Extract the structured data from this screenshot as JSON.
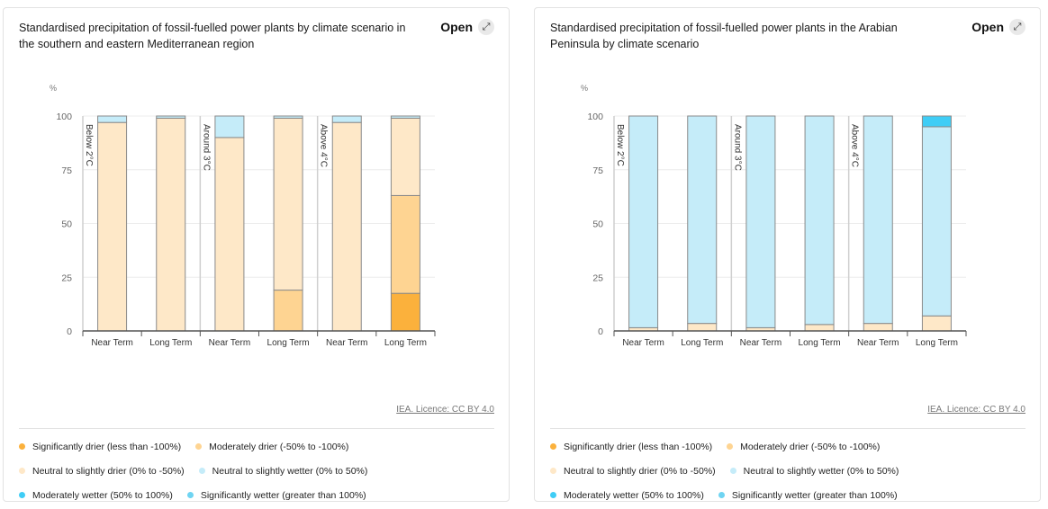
{
  "open_label": "Open",
  "licence": "IEA. Licence: CC BY 4.0",
  "legend": [
    {
      "label": "Significantly drier (less than -100%)",
      "color": "#fbb13c"
    },
    {
      "label": "Moderately drier (-50% to -100%)",
      "color": "#fed492"
    },
    {
      "label": "Neutral to slightly drier (0% to -50%)",
      "color": "#fee8c8"
    },
    {
      "label": "Neutral to slightly wetter (0% to 50%)",
      "color": "#c5ecf9"
    },
    {
      "label": "Moderately wetter (50% to 100%)",
      "color": "#3fcdf6"
    },
    {
      "label": "Significantly wetter (greater than 100%)",
      "color": "#6fd4f2"
    }
  ],
  "chart_data": [
    {
      "type": "bar",
      "stacked": true,
      "title": "Standardised precipitation of fossil-fuelled power plants by climate scenario in the southern and eastern Mediterranean region",
      "ylabel": "%",
      "ylim": [
        0,
        100
      ],
      "yticks": [
        0,
        25,
        50,
        75,
        100
      ],
      "grid": true,
      "groups": [
        "Below 2°C",
        "Around 3°C",
        "Above 4°C"
      ],
      "categories": [
        "Near Term",
        "Long Term",
        "Near Term",
        "Long Term",
        "Near Term",
        "Long Term"
      ],
      "series": [
        {
          "name": "Significantly drier (less than -100%)",
          "values": [
            0,
            0,
            0,
            0,
            0,
            17.5
          ]
        },
        {
          "name": "Moderately drier (-50% to -100%)",
          "values": [
            0,
            0,
            0,
            19,
            0,
            45.5
          ]
        },
        {
          "name": "Neutral to slightly drier (0% to -50%)",
          "values": [
            97,
            99,
            90,
            80,
            97,
            36
          ]
        },
        {
          "name": "Neutral to slightly wetter (0% to 50%)",
          "values": [
            3,
            1,
            10,
            1,
            3,
            1
          ]
        },
        {
          "name": "Moderately wetter (50% to 100%)",
          "values": [
            0,
            0,
            0,
            0,
            0,
            0
          ]
        },
        {
          "name": "Significantly wetter (greater than 100%)",
          "values": [
            0,
            0,
            0,
            0,
            0,
            0
          ]
        }
      ]
    },
    {
      "type": "bar",
      "stacked": true,
      "title": "Standardised precipitation of fossil-fuelled power plants in the Arabian Peninsula by climate scenario",
      "ylabel": "%",
      "ylim": [
        0,
        100
      ],
      "yticks": [
        0,
        25,
        50,
        75,
        100
      ],
      "grid": true,
      "groups": [
        "Below 2°C",
        "Around 3°C",
        "Above 4°C"
      ],
      "categories": [
        "Near Term",
        "Long Term",
        "Near Term",
        "Long Term",
        "Near Term",
        "Long Term"
      ],
      "series": [
        {
          "name": "Significantly drier (less than -100%)",
          "values": [
            0,
            0,
            0,
            0,
            0,
            0
          ]
        },
        {
          "name": "Moderately drier (-50% to -100%)",
          "values": [
            0,
            0,
            0,
            0,
            0,
            0
          ]
        },
        {
          "name": "Neutral to slightly drier (0% to -50%)",
          "values": [
            1.5,
            3.5,
            1.5,
            3,
            3.5,
            7
          ]
        },
        {
          "name": "Neutral to slightly wetter (0% to 50%)",
          "values": [
            98.5,
            96.5,
            98.5,
            97,
            96.5,
            88
          ]
        },
        {
          "name": "Moderately wetter (50% to 100%)",
          "values": [
            0,
            0,
            0,
            0,
            0,
            5
          ]
        },
        {
          "name": "Significantly wetter (greater than 100%)",
          "values": [
            0,
            0,
            0,
            0,
            0,
            0
          ]
        }
      ]
    }
  ]
}
